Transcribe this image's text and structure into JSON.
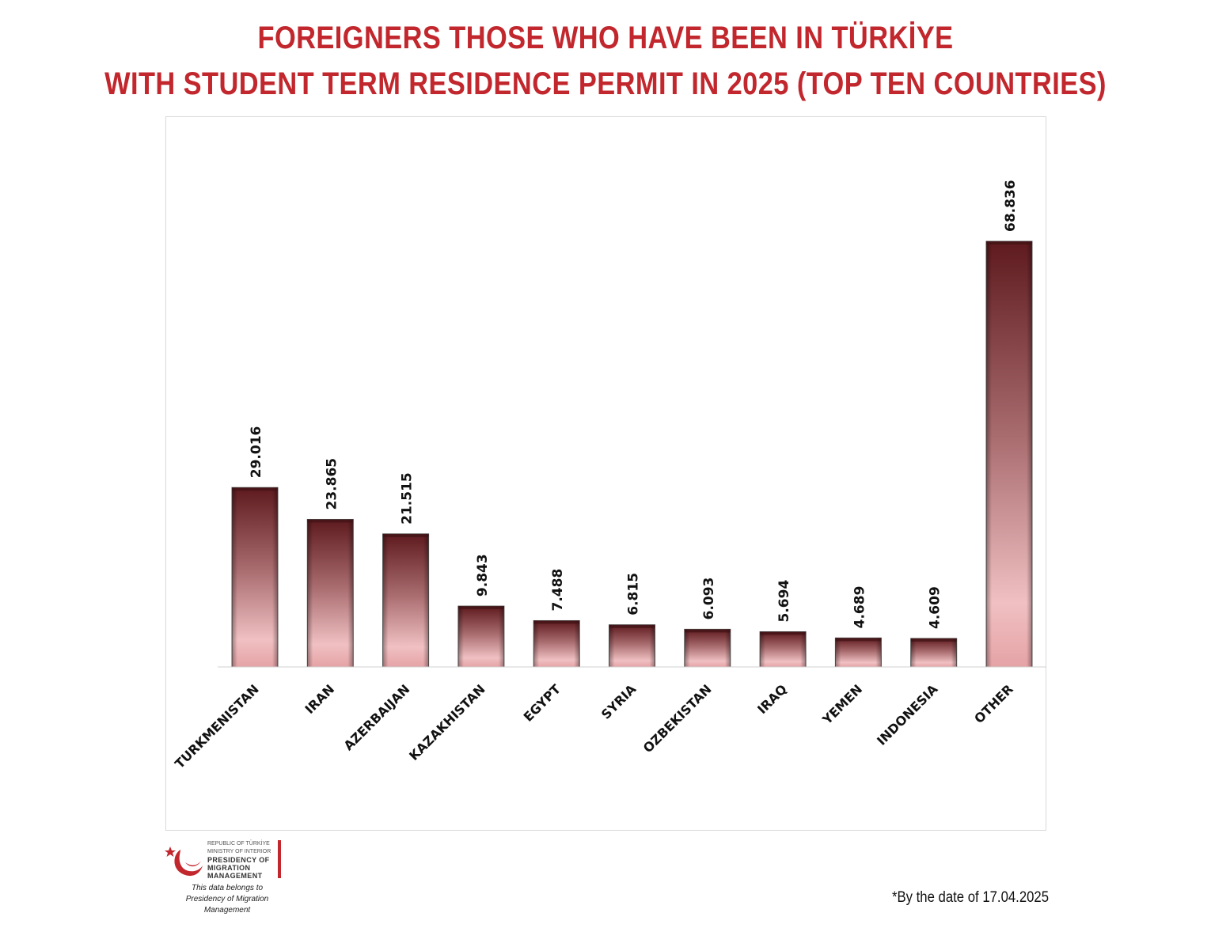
{
  "header": {
    "title_line1": "FOREIGNERS THOSE WHO HAVE BEEN IN TÜRKİYE",
    "title_line2": "WITH STUDENT TERM RESIDENCE PERMIT IN 2025 (TOP TEN COUNTRIES)"
  },
  "chart_data": {
    "type": "bar",
    "title": "FOREIGNERS THOSE WHO HAVE BEEN IN TÜRKİYE WITH STUDENT TERM RESIDENCE PERMIT IN 2025 (TOP TEN COUNTRIES)",
    "categories": [
      "TURKMENISTAN",
      "IRAN",
      "AZERBAIJAN",
      "KAZAKHISTAN",
      "EGYPT",
      "SYRIA",
      "OZBEKISTAN",
      "IRAQ",
      "YEMEN",
      "INDONESIA",
      "OTHER"
    ],
    "values": [
      29016,
      23865,
      21515,
      9843,
      7488,
      6815,
      6093,
      5694,
      4689,
      4609,
      68836
    ],
    "value_labels": [
      "29.016",
      "23.865",
      "21.515",
      "9.843",
      "7.488",
      "6.815",
      "6.093",
      "5.694",
      "4.689",
      "4.609",
      "68.836"
    ],
    "xlabel": "",
    "ylabel": "",
    "ylim": [
      0,
      100000
    ],
    "grid": false,
    "legend": "none",
    "bar_color_top": "#6b2226",
    "bar_color_bottom": "#f2c0c2",
    "label_orientation": "vertical",
    "category_label_rotation": -45
  },
  "footer": {
    "logo_line1": "REPUBLIC OF TÜRKİYE",
    "logo_line2": "MINISTRY OF INTERIOR",
    "logo_line3": "PRESIDENCY OF",
    "logo_line4": "MIGRATION MANAGEMENT",
    "belongs_line1": "This data belongs to",
    "belongs_line2": "Presidency of Migration Management",
    "date_note": "*By the date of  17.04.2025",
    "brand_color": "#c1272d"
  }
}
